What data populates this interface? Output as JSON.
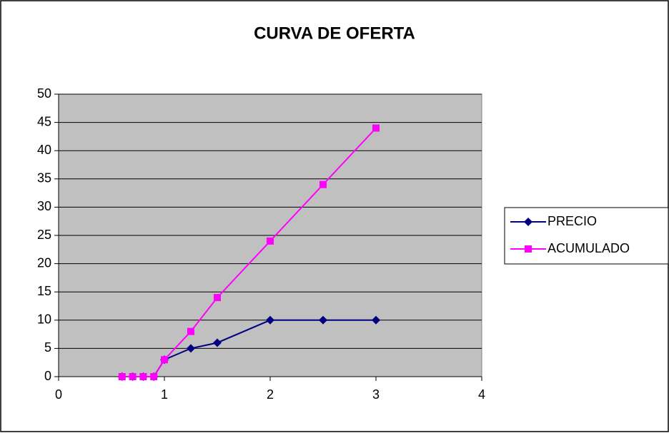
{
  "chart_data": {
    "type": "line",
    "title": "CURVA DE OFERTA",
    "x": [
      0.6,
      0.7,
      0.8,
      0.9,
      1,
      1.25,
      1.5,
      2,
      2.5,
      3
    ],
    "series": [
      {
        "name": "PRECIO",
        "color": "#000080",
        "marker": "diamond",
        "values": [
          0,
          0,
          0,
          0,
          3,
          5,
          6,
          10,
          10,
          10
        ]
      },
      {
        "name": "ACUMULADO",
        "color": "#ff00ff",
        "marker": "square",
        "values": [
          0,
          0,
          0,
          0,
          3,
          8,
          14,
          24,
          34,
          44
        ]
      }
    ],
    "xlim": [
      0,
      4
    ],
    "xticks": [
      0,
      1,
      2,
      3,
      4
    ],
    "ylim": [
      0,
      50
    ],
    "yticks": [
      0,
      5,
      10,
      15,
      20,
      25,
      30,
      35,
      40,
      45,
      50
    ],
    "grid": true,
    "legend": "right"
  }
}
